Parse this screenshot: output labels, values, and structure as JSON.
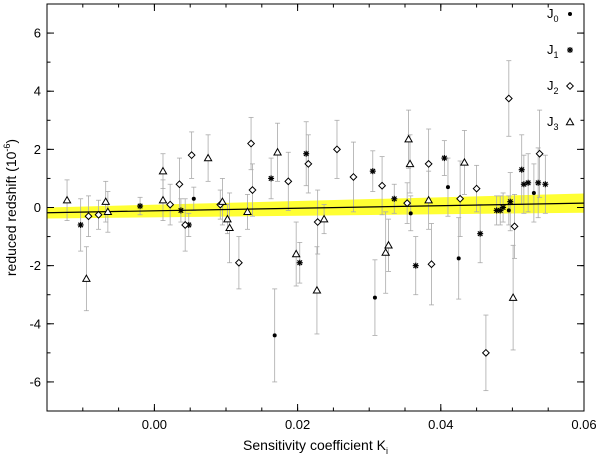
{
  "chart_data": {
    "type": "scatter",
    "xlabel": "Sensitivity coefficient K",
    "xlabel_sub": "i",
    "ylabel": "reduced redshift (10",
    "ylabel_sup": "-6",
    "ylabel_end": ")",
    "xlim": [
      -0.015,
      0.06
    ],
    "ylim": [
      -7,
      7
    ],
    "x_ticks": [
      0.0,
      0.02,
      0.04,
      0.06
    ],
    "x_tick_labels": [
      "0.00",
      "0.02",
      "0.04",
      "0.06"
    ],
    "y_ticks": [
      -6,
      -4,
      -2,
      0,
      2,
      4,
      6
    ],
    "y_tick_labels": [
      "-6",
      "-4",
      "-2",
      "0",
      "2",
      "4",
      "6"
    ],
    "grid": false,
    "legend_position": "right",
    "fit_line": {
      "x": [
        -0.015,
        0.06
      ],
      "y": [
        -0.18,
        0.15
      ],
      "color": "#000000"
    },
    "confidence_band": {
      "x": [
        -0.015,
        0.06
      ],
      "upper": [
        0.0,
        0.48
      ],
      "lower": [
        -0.38,
        -0.18
      ],
      "color": "#ffff33"
    },
    "series": [
      {
        "name": "J",
        "sub": "0",
        "marker": "dot",
        "points": [
          [
            0.0055,
            0.3,
            0.4
          ],
          [
            0.0168,
            -4.4,
            1.6
          ],
          [
            0.0308,
            -3.1,
            1.3
          ],
          [
            0.0358,
            -0.2,
            0.6
          ],
          [
            0.041,
            0.7,
            1.0
          ],
          [
            0.0425,
            -1.75,
            1.4
          ],
          [
            0.0495,
            -0.1,
            0.5
          ],
          [
            0.053,
            0.5,
            1.0
          ]
        ]
      },
      {
        "name": "J",
        "sub": "1",
        "marker": "asterisk",
        "points": [
          [
            -0.0103,
            -0.6,
            0.9
          ],
          [
            -0.002,
            0.05,
            0.3
          ],
          [
            0.0037,
            -0.1,
            0.4
          ],
          [
            0.0048,
            -0.6,
            0.4
          ],
          [
            0.0163,
            1.0,
            0.7
          ],
          [
            0.0203,
            -1.9,
            0.7
          ],
          [
            0.0212,
            1.85,
            1.1
          ],
          [
            0.0305,
            1.25,
            0.7
          ],
          [
            0.0335,
            0.3,
            0.5
          ],
          [
            0.0365,
            -2.0,
            1.0
          ],
          [
            0.0405,
            1.7,
            0.6
          ],
          [
            0.0455,
            -0.9,
            1.0
          ],
          [
            0.0478,
            -0.1,
            0.5
          ],
          [
            0.0483,
            -0.1,
            0.5
          ],
          [
            0.0487,
            0.0,
            0.5
          ],
          [
            0.0497,
            0.2,
            1.0
          ],
          [
            0.0513,
            1.3,
            1.2
          ],
          [
            0.0516,
            0.8,
            1.0
          ],
          [
            0.0522,
            0.85,
            1.0
          ],
          [
            0.0536,
            0.85,
            1.2
          ],
          [
            0.0546,
            0.8,
            1.0
          ]
        ]
      },
      {
        "name": "J",
        "sub": "2",
        "marker": "diamond",
        "points": [
          [
            -0.0092,
            -0.3,
            0.7
          ],
          [
            -0.0078,
            -0.25,
            0.5
          ],
          [
            0.0022,
            0.1,
            0.7
          ],
          [
            0.0035,
            0.8,
            0.9
          ],
          [
            0.0043,
            -0.6,
            0.9
          ],
          [
            0.0052,
            1.8,
            0.8
          ],
          [
            0.0092,
            0.1,
            0.5
          ],
          [
            0.0118,
            -1.9,
            0.9
          ],
          [
            0.0135,
            2.2,
            0.9
          ],
          [
            0.0137,
            0.6,
            0.9
          ],
          [
            0.0187,
            0.9,
            1.0
          ],
          [
            0.0215,
            1.5,
            1.0
          ],
          [
            0.0228,
            -0.5,
            1.1
          ],
          [
            0.0255,
            2.0,
            1.0
          ],
          [
            0.0278,
            1.05,
            1.2
          ],
          [
            0.0318,
            0.75,
            1.0
          ],
          [
            0.0353,
            0.15,
            0.7
          ],
          [
            0.0383,
            1.5,
            1.2
          ],
          [
            0.0387,
            -1.95,
            1.4
          ],
          [
            0.0427,
            0.3,
            1.3
          ],
          [
            0.045,
            0.65,
            0.8
          ],
          [
            0.0463,
            -5.0,
            1.3
          ],
          [
            0.0495,
            3.75,
            1.3
          ],
          [
            0.0503,
            -0.65,
            1.1
          ],
          [
            0.0538,
            1.85,
            1.5
          ]
        ]
      },
      {
        "name": "J",
        "sub": "3",
        "marker": "triangle",
        "points": [
          [
            -0.0122,
            0.25,
            0.7
          ],
          [
            -0.0095,
            -2.45,
            1.1
          ],
          [
            -0.0068,
            0.2,
            0.7
          ],
          [
            -0.0065,
            -0.15,
            0.7
          ],
          [
            0.0012,
            0.25,
            0.7
          ],
          [
            0.0012,
            1.25,
            0.6
          ],
          [
            0.0075,
            1.7,
            0.8
          ],
          [
            0.0095,
            0.2,
            0.8
          ],
          [
            0.0102,
            -0.4,
            0.5
          ],
          [
            0.0105,
            -0.7,
            1.2
          ],
          [
            0.013,
            -0.15,
            0.6
          ],
          [
            0.0172,
            1.9,
            1.0
          ],
          [
            0.0198,
            -1.6,
            1.1
          ],
          [
            0.0227,
            -2.85,
            1.5
          ],
          [
            0.0237,
            -0.4,
            0.5
          ],
          [
            0.0323,
            -1.55,
            1.4
          ],
          [
            0.0327,
            -1.3,
            0.9
          ],
          [
            0.0355,
            2.35,
            1.0
          ],
          [
            0.0357,
            1.5,
            1.0
          ],
          [
            0.0383,
            0.25,
            1.0
          ],
          [
            0.0433,
            1.55,
            1.1
          ],
          [
            0.0501,
            -3.1,
            1.8
          ]
        ]
      }
    ]
  }
}
